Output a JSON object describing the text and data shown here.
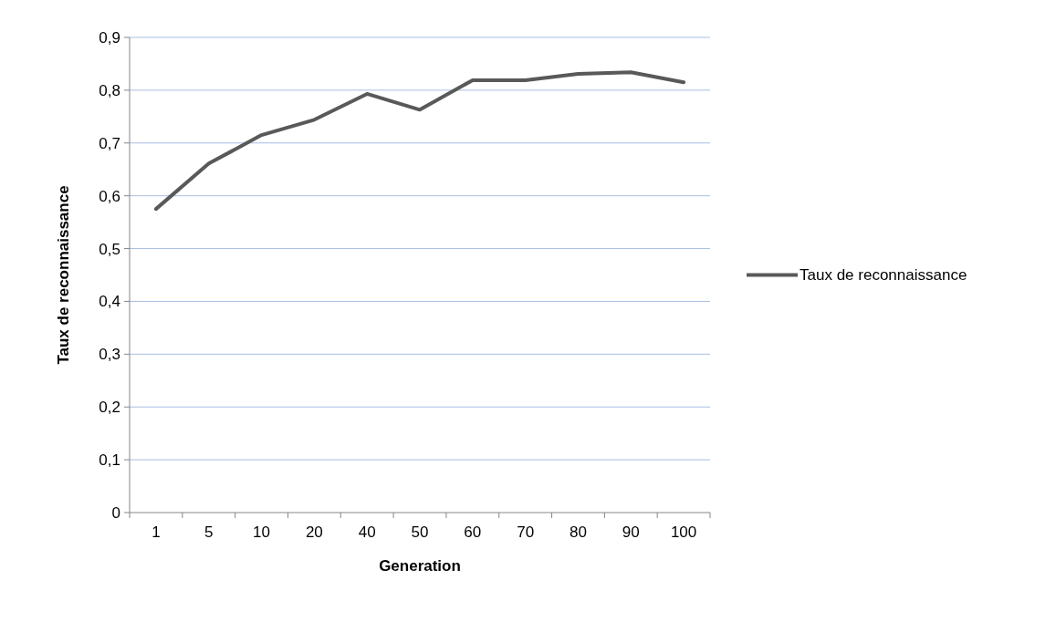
{
  "chart_data": {
    "type": "line",
    "xlabel": "Generation",
    "ylabel": "Taux de reconnaissance",
    "categories": [
      "1",
      "5",
      "10",
      "20",
      "40",
      "50",
      "60",
      "70",
      "80",
      "90",
      "100"
    ],
    "series": [
      {
        "name": "Taux de reconnaissance",
        "color": "#595959",
        "values": [
          0.575,
          0.661,
          0.715,
          0.744,
          0.793,
          0.763,
          0.819,
          0.819,
          0.831,
          0.834,
          0.815
        ]
      }
    ],
    "ylim": [
      0,
      0.9
    ],
    "yticks": [
      {
        "value": 0,
        "label": "0"
      },
      {
        "value": 0.1,
        "label": "0,1"
      },
      {
        "value": 0.2,
        "label": "0,2"
      },
      {
        "value": 0.3,
        "label": "0,3"
      },
      {
        "value": 0.4,
        "label": "0,4"
      },
      {
        "value": 0.5,
        "label": "0,5"
      },
      {
        "value": 0.6,
        "label": "0,6"
      },
      {
        "value": 0.7,
        "label": "0,7"
      },
      {
        "value": 0.8,
        "label": "0,8"
      },
      {
        "value": 0.9,
        "label": "0,9"
      }
    ],
    "grid": "y",
    "legend": "right",
    "marker": "none",
    "line_style": "solid"
  }
}
